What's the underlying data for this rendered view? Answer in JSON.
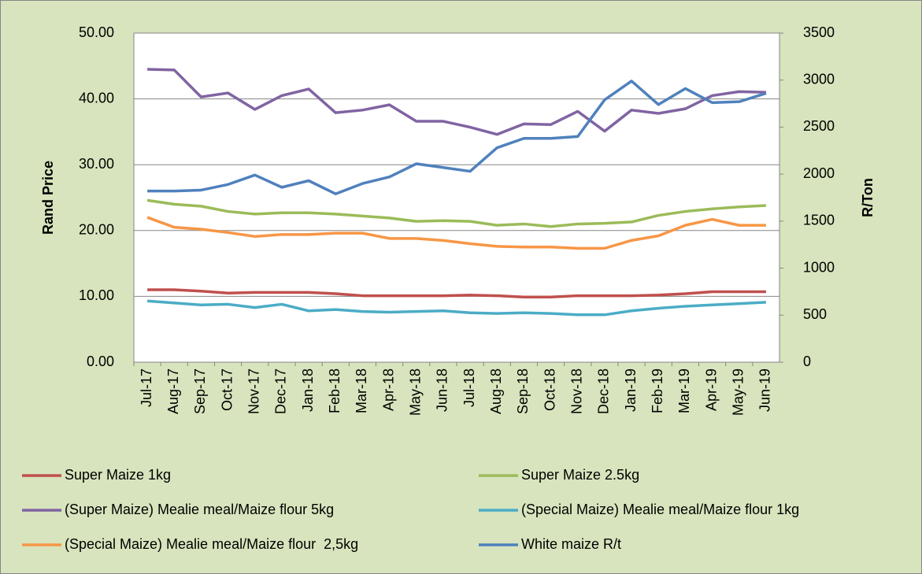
{
  "chart_data": {
    "type": "line",
    "ylabel": "Rand Price",
    "y2label": "R/Ton",
    "categories": [
      "Jul-17",
      "Aug-17",
      "Sep-17",
      "Oct-17",
      "Nov-17",
      "Dec-17",
      "Jan-18",
      "Feb-18",
      "Mar-18",
      "Apr-18",
      "May-18",
      "Jun-18",
      "Jul-18",
      "Aug-18",
      "Sep-18",
      "Oct-18",
      "Nov-18",
      "Dec-18",
      "Jan-19",
      "Feb-19",
      "Mar-19",
      "Apr-19",
      "May-19",
      "Jun-19"
    ],
    "series": [
      {
        "name": "Super Maize 1kg",
        "color": "#c0504d",
        "values": [
          11.0,
          11.0,
          10.8,
          10.5,
          10.6,
          10.6,
          10.6,
          10.4,
          10.1,
          10.1,
          10.1,
          10.1,
          10.2,
          10.1,
          9.9,
          9.9,
          10.1,
          10.1,
          10.1,
          10.2,
          10.4,
          10.7,
          10.7,
          10.7
        ]
      },
      {
        "name": "Super Maize 2.5kg",
        "color": "#9bbb59",
        "values": [
          24.6,
          24.0,
          23.7,
          22.9,
          22.5,
          22.7,
          22.7,
          22.5,
          22.2,
          21.9,
          21.4,
          21.5,
          21.4,
          20.8,
          21.0,
          20.6,
          21.0,
          21.1,
          21.3,
          22.3,
          22.9,
          23.3,
          23.6,
          23.8
        ]
      },
      {
        "name": "(Super Maize) Mealie meal/Maize flour 5kg",
        "color": "#8064a2",
        "values": [
          44.5,
          44.4,
          40.3,
          40.9,
          38.4,
          40.5,
          41.5,
          37.9,
          38.3,
          39.1,
          36.6,
          36.6,
          35.7,
          34.6,
          36.2,
          36.1,
          38.1,
          35.1,
          38.3,
          37.8,
          38.5,
          40.5,
          41.1,
          41.0
        ]
      },
      {
        "name": "(Special Maize) Mealie meal/Maize flour 1kg",
        "color": "#4bacc6",
        "values": [
          9.3,
          9.0,
          8.7,
          8.8,
          8.3,
          8.8,
          7.8,
          8.0,
          7.7,
          7.6,
          7.7,
          7.8,
          7.5,
          7.4,
          7.5,
          7.4,
          7.2,
          7.2,
          7.8,
          8.2,
          8.5,
          8.7,
          8.9,
          9.1
        ]
      },
      {
        "name": "(Special Maize) Mealie meal/Maize flour  2,5kg",
        "color": "#f79646",
        "values": [
          22.0,
          20.5,
          20.2,
          19.7,
          19.1,
          19.4,
          19.4,
          19.6,
          19.6,
          18.8,
          18.8,
          18.5,
          18.0,
          17.6,
          17.5,
          17.5,
          17.3,
          17.3,
          18.5,
          19.2,
          20.8,
          21.7,
          20.8,
          20.8
        ]
      },
      {
        "name": "White maize R/t",
        "color": "#4f81bd",
        "axis": "y2",
        "values": [
          1820,
          1820,
          1830,
          1890,
          1990,
          1860,
          1930,
          1790,
          1900,
          1970,
          2110,
          2070,
          2030,
          2280,
          2380,
          2380,
          2400,
          2790,
          2990,
          2740,
          2910,
          2760,
          2770,
          2860
        ]
      }
    ],
    "ylim": [
      0,
      50
    ],
    "yticks": [
      {
        "value": 0,
        "label": "0.00"
      },
      {
        "value": 10,
        "label": "10.00"
      },
      {
        "value": 20,
        "label": "20.00"
      },
      {
        "value": 30,
        "label": "30.00"
      },
      {
        "value": 40,
        "label": "40.00"
      },
      {
        "value": 50,
        "label": "50.00"
      }
    ],
    "y2lim": [
      0,
      3500
    ],
    "y2ticks": [
      0,
      500,
      1000,
      1500,
      2000,
      2500,
      3000,
      3500
    ],
    "grid": true
  }
}
